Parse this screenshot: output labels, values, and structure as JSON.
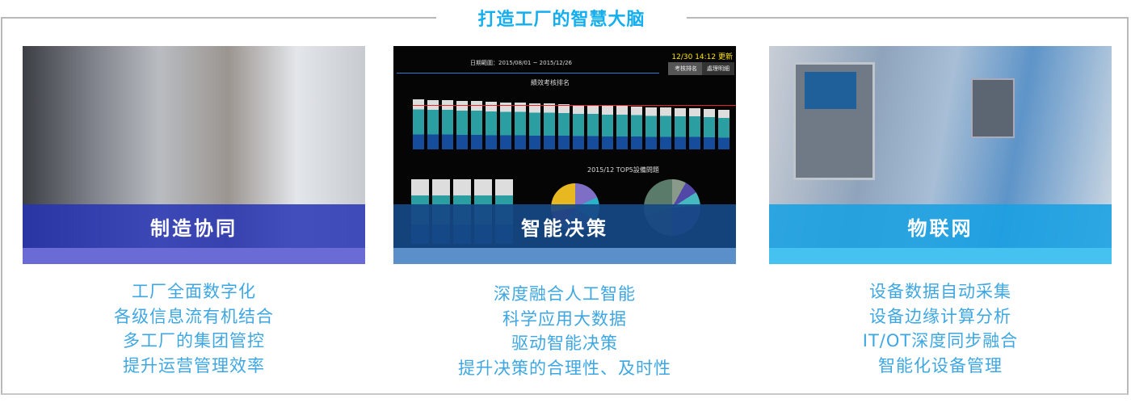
{
  "title": "打造工厂的智慧大脑",
  "cards": [
    {
      "label": "制造协同",
      "lines": [
        "工厂全面数字化",
        "各级信息流有机结合",
        "多工厂的集团管控",
        "提升运营管理效率"
      ]
    },
    {
      "label": "智能决策",
      "lines": [
        "深度融合人工智能",
        "科学应用大数据",
        "驱动智能决策",
        "提升决策的合理性、及时性"
      ],
      "dashboard": {
        "timestamp": "12/30 14:12 更新",
        "date_range": "日期範圍：2015/08/01 ~ 2015/12/26",
        "tabs": [
          "考核排名",
          "處理明細"
        ],
        "chart_title": "績效考核排名",
        "top5_title": "2015/12 TOP5設備問題"
      }
    },
    {
      "label": "物联网",
      "lines": [
        "设备数据自动采集",
        "设备边缘计算分析",
        "IT/OT深度同步融合",
        "智能化设备管理"
      ]
    }
  ],
  "colors": {
    "title": "#12aef0",
    "text": "#3ea7e2",
    "banner1": "#2634b4",
    "banner2": "#164884",
    "banner3": "#18a0e2"
  }
}
